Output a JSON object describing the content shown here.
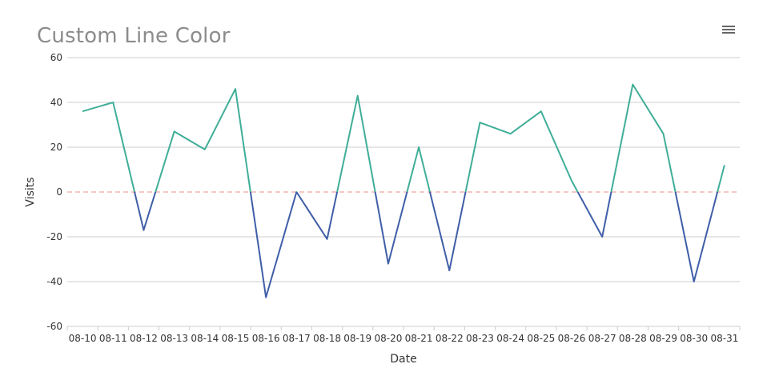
{
  "title": "Custom Line Color",
  "toolbar": {
    "menu_icon": "hamburger-menu-icon"
  },
  "colors": {
    "positive": "#3fae98",
    "negative": "#3f5ea8",
    "zero_line": "#f08c8c",
    "grid": "#cccccc",
    "axis": "#cccccc",
    "title": "#8c8c8c",
    "text": "#333333"
  },
  "chart_data": {
    "type": "line",
    "xlabel": "Date",
    "ylabel": "Visits",
    "ylim": [
      -60,
      60
    ],
    "yticks": [
      -60,
      -40,
      -20,
      0,
      20,
      40,
      60
    ],
    "categories": [
      "08-10",
      "08-11",
      "08-12",
      "08-13",
      "08-14",
      "08-15",
      "08-16",
      "08-17",
      "08-18",
      "08-19",
      "08-20",
      "08-21",
      "08-22",
      "08-23",
      "08-24",
      "08-25",
      "08-26",
      "08-27",
      "08-28",
      "08-29",
      "08-30",
      "08-31"
    ],
    "series": [
      {
        "values": [
          36,
          40,
          -17,
          27,
          19,
          46,
          -47,
          0,
          -21,
          43,
          -32,
          20,
          -35,
          31,
          26,
          36,
          5,
          -20,
          48,
          26,
          -40,
          12
        ]
      }
    ],
    "color_rule": "green above 0, blue below 0",
    "threshold_line": {
      "value": 0,
      "style": "dashed"
    },
    "grid": true
  }
}
